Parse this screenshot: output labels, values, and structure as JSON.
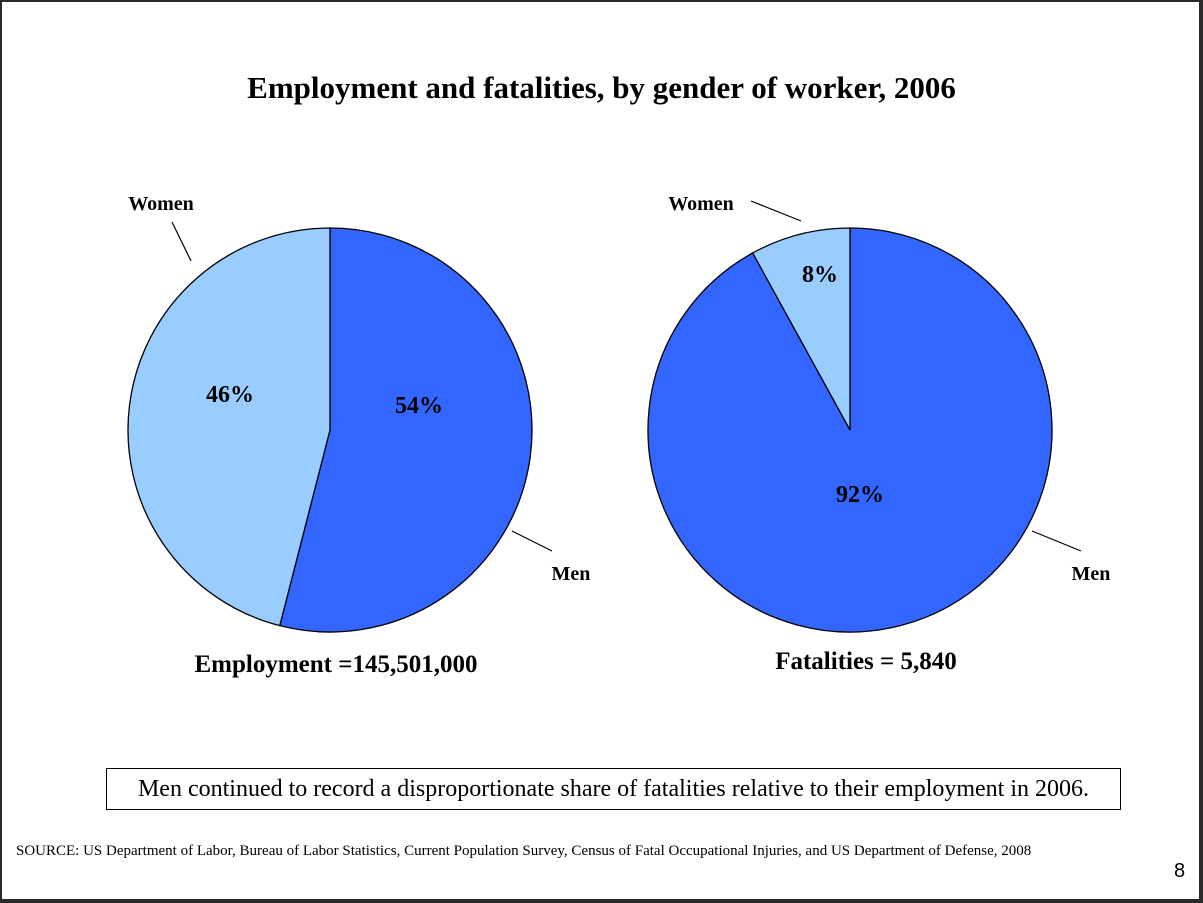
{
  "chart_data": [
    {
      "type": "pie",
      "title": "Employment and fatalities, by gender of worker, 2006",
      "caption": "Employment =145,501,000",
      "slices": [
        {
          "label": "Men",
          "value": 54,
          "value_label": "54%",
          "color": "#3366ff"
        },
        {
          "label": "Women",
          "value": 46,
          "value_label": "46%",
          "color": "#99ccff"
        }
      ]
    },
    {
      "type": "pie",
      "title": "Employment and fatalities, by gender of worker, 2006",
      "caption": "Fatalities = 5,840",
      "slices": [
        {
          "label": "Men",
          "value": 92,
          "value_label": "92%",
          "color": "#3366ff"
        },
        {
          "label": "Women",
          "value": 8,
          "value_label": "8%",
          "color": "#99ccff"
        }
      ]
    }
  ],
  "slide": {
    "title": "Employment and fatalities, by gender of worker, 2006",
    "note": "Men continued to record a disproportionate share of fatalities relative to their employment in 2006.",
    "source": "SOURCE:  US Department of Labor, Bureau of Labor Statistics, Current Population Survey, Census of Fatal Occupational Injuries, and US Department of Defense, 2008",
    "page_number": "8"
  }
}
